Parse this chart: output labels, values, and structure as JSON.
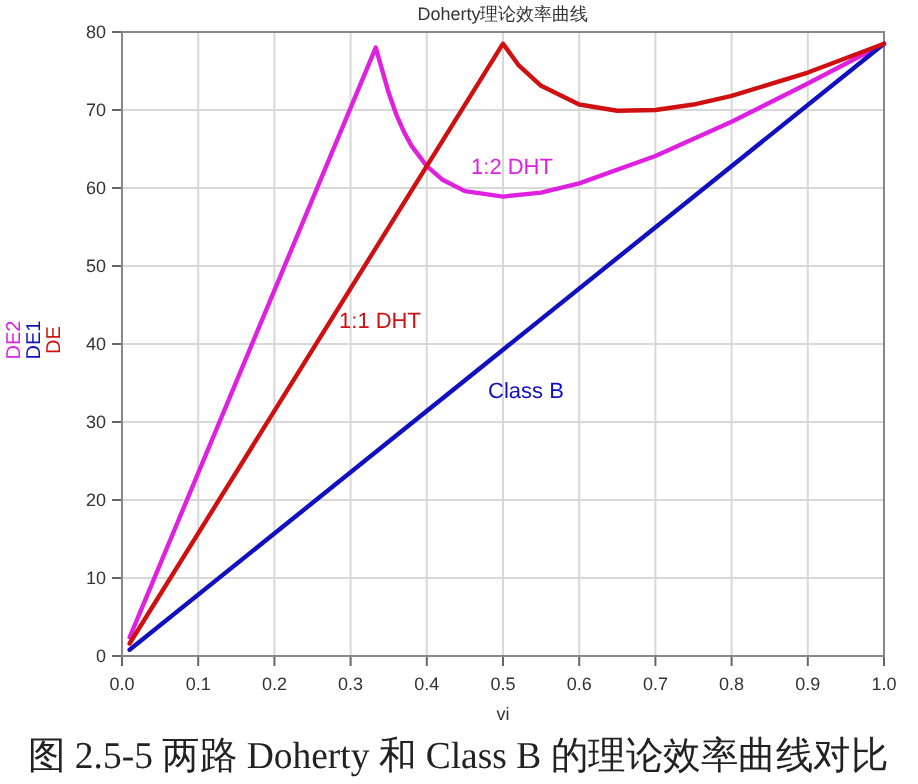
{
  "chart_data": {
    "type": "line",
    "title": "Doherty理论效率曲线",
    "xlabel": "vi",
    "xlim": [
      0,
      1
    ],
    "ylim": [
      0,
      80
    ],
    "xticks": [
      {
        "value": 0,
        "label": "0.0"
      },
      0.1,
      0.2,
      0.3,
      0.4,
      0.5,
      0.6,
      0.7,
      0.8,
      0.9,
      {
        "value": 1,
        "label": "1.0"
      }
    ],
    "yticks": [
      0,
      10,
      20,
      30,
      40,
      50,
      60,
      70,
      80
    ],
    "grid": true,
    "legend": "left",
    "marker": "none",
    "line_style": "solid",
    "series": [
      {
        "name": "DE2",
        "color": "#e020e0",
        "x": [
          0.01,
          0.333,
          0.35,
          0.36,
          0.37,
          0.38,
          0.4,
          0.42,
          0.45,
          0.5,
          0.55,
          0.6,
          0.7,
          0.8,
          0.9,
          1.0
        ],
        "values": [
          2.4,
          78,
          72.2,
          69.4,
          67.2,
          65.4,
          62.8,
          61.1,
          59.6,
          58.9,
          59.4,
          60.6,
          64.1,
          68.5,
          73.4,
          78.5
        ]
      },
      {
        "name": "DE1",
        "color": "#1010c0",
        "x": [
          0.01,
          1.0
        ],
        "values": [
          0.8,
          78.5
        ]
      },
      {
        "name": "DE",
        "color": "#d01010",
        "x": [
          0.01,
          0.5,
          0.52,
          0.55,
          0.6,
          0.65,
          0.7,
          0.75,
          0.8,
          0.9,
          1.0
        ],
        "values": [
          1.6,
          78.5,
          75.8,
          73.1,
          70.7,
          69.9,
          70.0,
          70.7,
          71.8,
          74.8,
          78.5
        ]
      }
    ],
    "annotations": [
      "1:2 DHT",
      "Class B",
      "1:1 DHT",
      "图 2.5-5 两路 Doherty 和 Class B 的理论效率曲线对比"
    ]
  }
}
